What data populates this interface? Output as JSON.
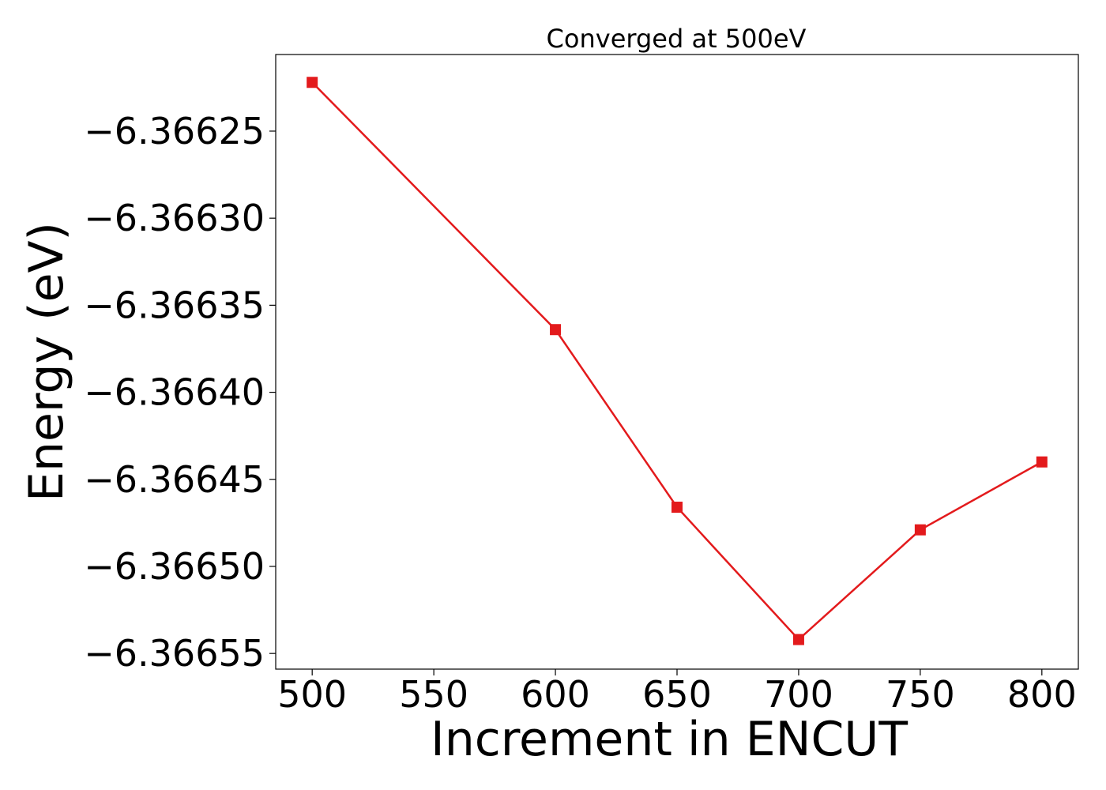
{
  "chart_data": {
    "type": "line",
    "title": "Converged at 500eV",
    "xlabel": "Increment in ENCUT",
    "ylabel": "Energy (eV)",
    "x": [
      500,
      600,
      650,
      700,
      750,
      800
    ],
    "series": [
      {
        "values": [
          -6.366222,
          -6.366364,
          -6.366466,
          -6.366542,
          -6.366479,
          -6.36644
        ],
        "color": "#e31a1c",
        "marker": "square"
      }
    ],
    "xticks": [
      500,
      550,
      600,
      650,
      700,
      750,
      800
    ],
    "xtick_labels": [
      "500",
      "550",
      "600",
      "650",
      "700",
      "750",
      "800"
    ],
    "yticks": [
      -6.36625,
      -6.3663,
      -6.36635,
      -6.3664,
      -6.36645,
      -6.3665,
      -6.36655
    ],
    "ytick_labels": [
      "−6.36625",
      "−6.36630",
      "−6.36635",
      "−6.36640",
      "−6.36645",
      "−6.36650",
      "−6.36655"
    ],
    "xlim": [
      485,
      815
    ],
    "ylim": [
      -6.366559,
      -6.366206
    ],
    "grid": false,
    "legend": false
  }
}
